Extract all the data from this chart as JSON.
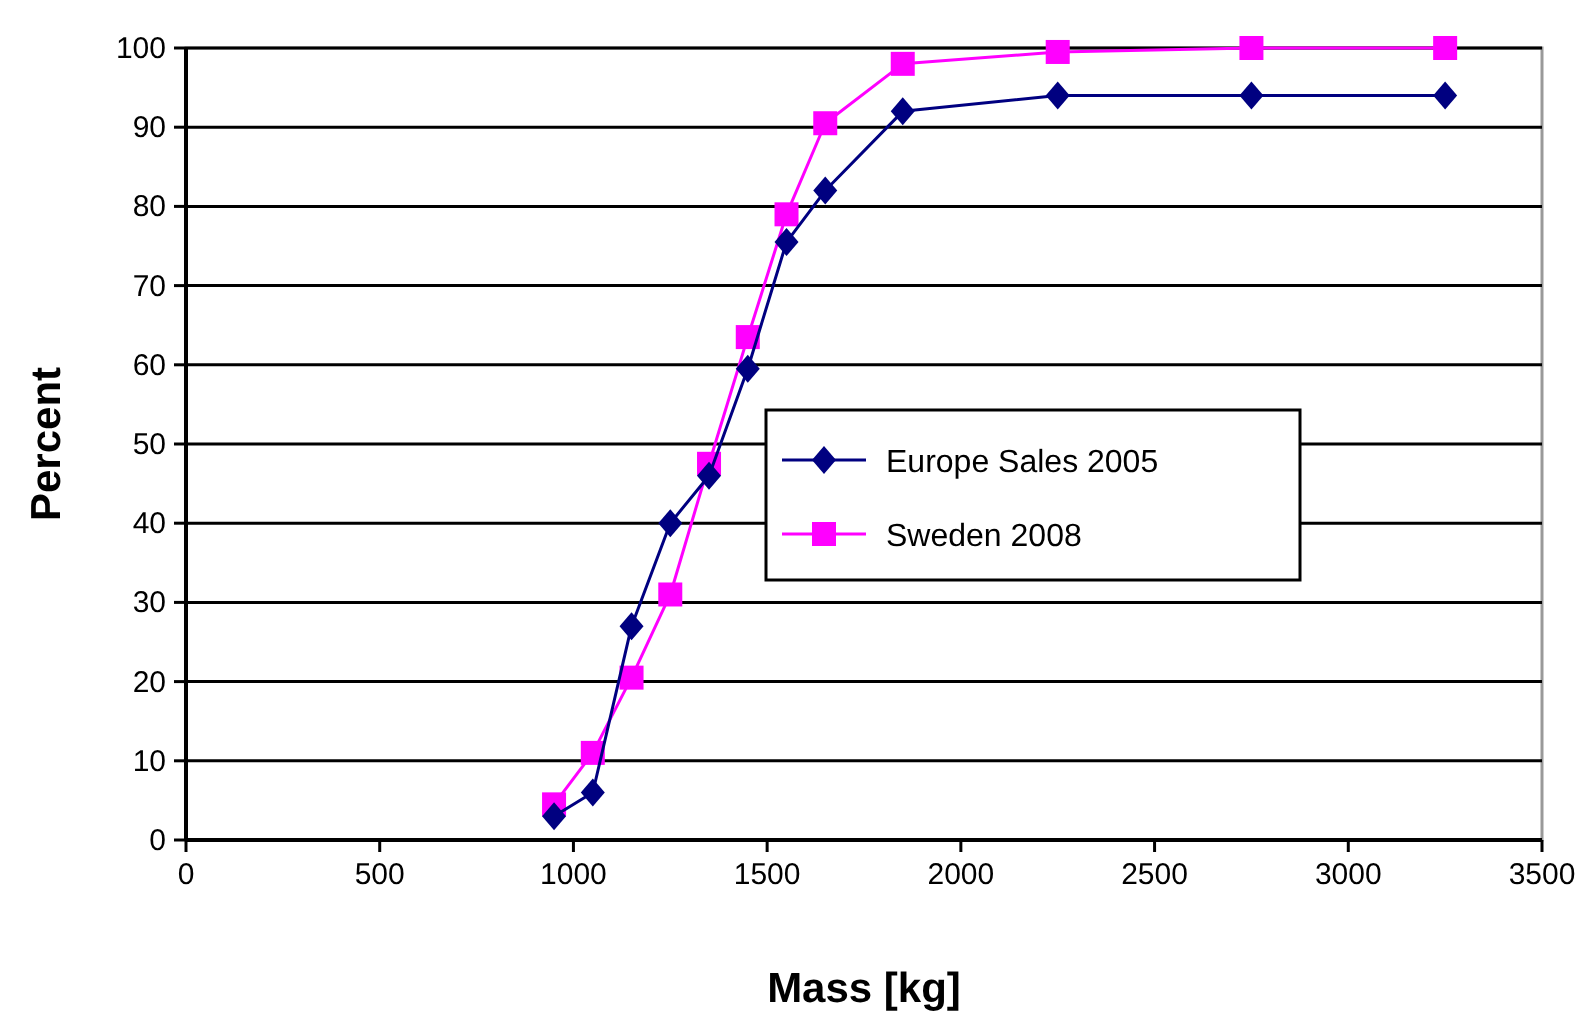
{
  "chart_data": {
    "type": "line",
    "xlabel": "Mass [kg]",
    "ylabel": "Percent",
    "xlim": [
      0,
      3500
    ],
    "xticks": [
      0,
      500,
      1000,
      1500,
      2000,
      2500,
      3000,
      3500
    ],
    "ylim": [
      0,
      100
    ],
    "yticks": [
      0,
      10,
      20,
      30,
      40,
      50,
      60,
      70,
      80,
      90,
      100
    ],
    "grid": "y",
    "legend": "right",
    "series": [
      {
        "name": "Europe Sales 2005",
        "color": "#000080",
        "marker": "diamond",
        "x": [
          950,
          1050,
          1150,
          1250,
          1350,
          1450,
          1550,
          1650,
          1850,
          2250,
          2750,
          3250
        ],
        "values": [
          3,
          6,
          27,
          40,
          46,
          59.5,
          75.5,
          82,
          92,
          94,
          94,
          94
        ]
      },
      {
        "name": "Sweden 2008",
        "color": "#ff00ff",
        "marker": "square",
        "x": [
          950,
          1050,
          1150,
          1250,
          1350,
          1450,
          1550,
          1650,
          1850,
          2250,
          2750,
          3250
        ],
        "values": [
          4.5,
          11,
          20.5,
          31,
          47.5,
          63.5,
          79,
          90.5,
          98,
          99.5,
          100,
          100
        ]
      }
    ]
  }
}
